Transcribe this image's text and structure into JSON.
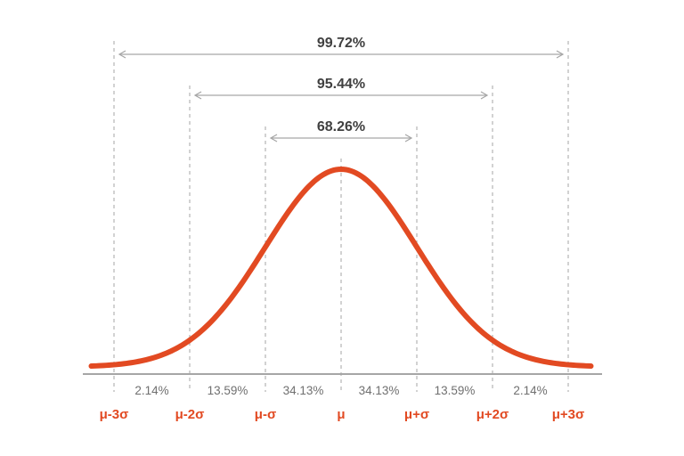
{
  "colors": {
    "curve": "#e24a22",
    "sigma_labels": "#e24a22",
    "guides": "#a6a6a6",
    "span_text": "#404040",
    "pct_text": "#707070"
  },
  "sigma_labels": [
    "μ-3σ",
    "μ-2σ",
    "μ-σ",
    "μ",
    "μ+σ",
    "μ+2σ",
    "μ+3σ"
  ],
  "interval_percentages": [
    "2.14%",
    "13.59%",
    "34.13%",
    "34.13%",
    "13.59%",
    "2.14%"
  ],
  "spans": [
    {
      "label": "99.72%",
      "from_sigma": -3,
      "to_sigma": 3
    },
    {
      "label": "95.44%",
      "from_sigma": -2,
      "to_sigma": 2
    },
    {
      "label": "68.26%",
      "from_sigma": -1,
      "to_sigma": 1
    }
  ],
  "curve": {
    "type": "normal-distribution",
    "x_range_sigma": [
      -3.3,
      3.3
    ]
  }
}
